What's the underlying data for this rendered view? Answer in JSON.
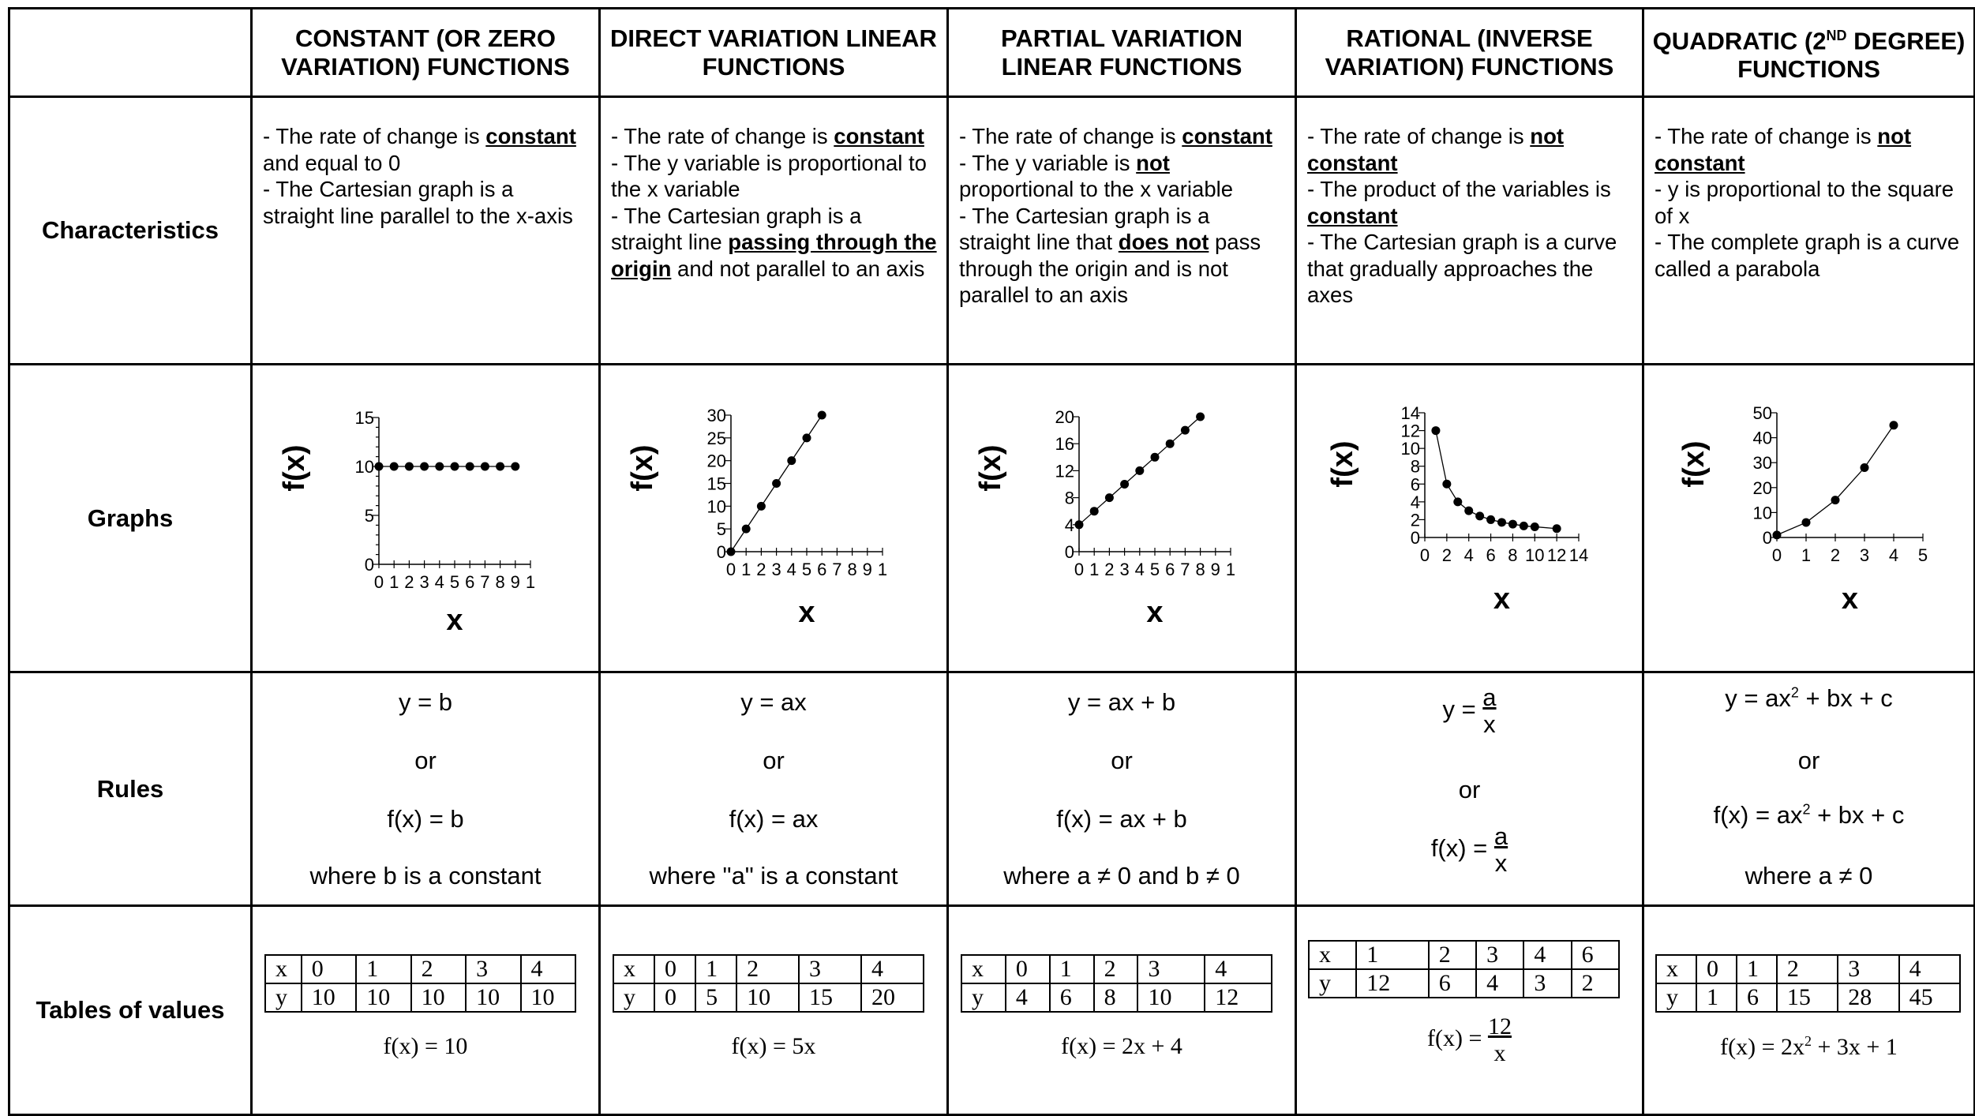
{
  "headers": [
    "",
    "CONSTANT (OR ZERO VARIATION) FUNCTIONS",
    "DIRECT VARIATION LINEAR FUNCTIONS",
    "PARTIAL VARIATION LINEAR FUNCTIONS",
    "RATIONAL (INVERSE VARIATION) FUNCTIONS",
    "QUADRATIC (2ND DEGREE) FUNCTIONS"
  ],
  "header_parts": {
    "quadratic_pre": "QUADRATIC (2",
    "quadratic_sup": "ND",
    "quadratic_post": "DEGREE) FUNCTIONS"
  },
  "row_labels": [
    "Characteristics",
    "Graphs",
    "Rules",
    "Tables of values"
  ],
  "characteristics": {
    "constant": [
      [
        "- The rate of change is ",
        ""
      ],
      [
        "constant",
        "bold"
      ],
      [
        " and equal to 0",
        ""
      ],
      [
        "- The Cartesian graph is a straight line parallel to the x-axis",
        ""
      ]
    ],
    "c0": "- The rate of change is",
    "c1": "constant",
    "c2": "and equal to 0",
    "c3": "- The Cartesian graph is a straight line parallel to the x-axis",
    "d0": "- The rate of change is",
    "d1": "constant",
    "d2": "- The y variable is proportional to the x variable",
    "d3": "- The Cartesian graph is a straight line",
    "d4": "passing through the origin",
    "d5": "and not parallel to an axis",
    "p0": "- The rate of change is",
    "p1": "constant",
    "p2": "- The y variable is",
    "p3": "not",
    "p4": "proportional to the x variable",
    "p5": "- The Cartesian graph is a straight line that",
    "p6": "does not",
    "p7": "pass through the origin and is not parallel to an axis",
    "r0": "- The rate of change is",
    "r1": "not constant",
    "r2": "- The product of the variables is",
    "r3": "constant",
    "r4": "- The Cartesian graph is a curve that gradually approaches the axes",
    "q0": "- The rate of change is",
    "q1": "not constant",
    "q2": "- y is proportional to the square of x",
    "q3": "- The complete graph is a curve called a parabola"
  },
  "graphs": {
    "ylabel": "f(x)",
    "xlabel": "x"
  },
  "chart_data": [
    {
      "type": "line",
      "name": "constant",
      "x": [
        0,
        1,
        2,
        3,
        4,
        5,
        6,
        7,
        8,
        9
      ],
      "y": [
        10,
        10,
        10,
        10,
        10,
        10,
        10,
        10,
        10,
        10
      ],
      "xlim": [
        0,
        10
      ],
      "ylim": [
        0,
        15
      ],
      "xticks": [
        "0",
        "1",
        "2",
        "3",
        "4",
        "5",
        "6",
        "7",
        "8",
        "9",
        "1"
      ],
      "yticks": [
        "0",
        "5",
        "10",
        "15"
      ],
      "xlabel": "x",
      "ylabel": "f(x)"
    },
    {
      "type": "line",
      "name": "direct",
      "x": [
        0,
        1,
        2,
        3,
        4,
        5,
        6
      ],
      "y": [
        0,
        5,
        10,
        15,
        20,
        25,
        30
      ],
      "xlim": [
        0,
        10
      ],
      "ylim": [
        0,
        30
      ],
      "xticks": [
        "0",
        "1",
        "2",
        "3",
        "4",
        "5",
        "6",
        "7",
        "8",
        "9",
        "1"
      ],
      "yticks": [
        "0",
        "5",
        "10",
        "15",
        "20",
        "25",
        "30"
      ],
      "xlabel": "x",
      "ylabel": "f(x)"
    },
    {
      "type": "line",
      "name": "partial",
      "x": [
        0,
        1,
        2,
        3,
        4,
        5,
        6,
        7,
        8
      ],
      "y": [
        4,
        6,
        8,
        10,
        12,
        14,
        16,
        18,
        20
      ],
      "xlim": [
        0,
        10
      ],
      "ylim": [
        0,
        20
      ],
      "xticks": [
        "0",
        "1",
        "2",
        "3",
        "4",
        "5",
        "6",
        "7",
        "8",
        "9",
        "1"
      ],
      "yticks": [
        "0",
        "4",
        "8",
        "12",
        "16",
        "20"
      ],
      "xlabel": "x",
      "ylabel": "f(x)"
    },
    {
      "type": "line",
      "name": "rational",
      "x": [
        1,
        2,
        3,
        4,
        5,
        6,
        7,
        8,
        9,
        10,
        12
      ],
      "y": [
        12,
        6,
        4,
        3,
        2.4,
        2,
        1.7,
        1.5,
        1.3,
        1.2,
        1
      ],
      "xlim": [
        0,
        14
      ],
      "ylim": [
        0,
        14
      ],
      "xticks": [
        "0",
        "2",
        "4",
        "6",
        "8",
        "10",
        "12",
        "14"
      ],
      "yticks": [
        "0",
        "2",
        "4",
        "6",
        "8",
        "10",
        "12",
        "14"
      ],
      "xlabel": "x",
      "ylabel": "f(x)"
    },
    {
      "type": "line",
      "name": "quadratic",
      "x": [
        0,
        1,
        2,
        3,
        4
      ],
      "y": [
        1,
        6,
        15,
        28,
        45
      ],
      "xlim": [
        0,
        5
      ],
      "ylim": [
        0,
        50
      ],
      "xticks": [
        "0",
        "1",
        "2",
        "3",
        "4",
        "5"
      ],
      "yticks": [
        "0",
        "10",
        "20",
        "30",
        "40",
        "50"
      ],
      "xlabel": "x",
      "ylabel": "f(x)"
    }
  ],
  "rules": {
    "or": "or",
    "constant": {
      "a": "y = b",
      "b": "f(x) = b",
      "note": "where b is a constant"
    },
    "direct": {
      "a": "y = ax",
      "b": "f(x) = ax",
      "note": "where \"a\" is a constant"
    },
    "partial": {
      "a": "y = ax + b",
      "b": "f(x) = ax + b",
      "note": "where a ≠ 0 and b ≠ 0"
    },
    "rational": {
      "a_pre": "y =",
      "b_pre": "f(x) =",
      "num": "a",
      "den": "x"
    },
    "quadratic": {
      "a_pre": "y = ax",
      "sup": "2",
      "a_post": " + bx + c",
      "b_pre": "f(x) = ax",
      "b_post": " + bx + c",
      "note": "where a ≠ 0"
    }
  },
  "tables": {
    "constant": {
      "x": [
        "x",
        "0",
        "1",
        "2",
        "3",
        "4"
      ],
      "y": [
        "y",
        "10",
        "10",
        "10",
        "10",
        "10"
      ],
      "eq": "f(x) = 10"
    },
    "direct": {
      "x": [
        "x",
        "0",
        "1",
        "2",
        "3",
        "4"
      ],
      "y": [
        "y",
        "0",
        "5",
        "10",
        "15",
        "20"
      ],
      "eq": "f(x) = 5x"
    },
    "partial": {
      "x": [
        "x",
        "0",
        "1",
        "2",
        "3",
        "4"
      ],
      "y": [
        "y",
        "4",
        "6",
        "8",
        "10",
        "12"
      ],
      "eq": "f(x) = 2x + 4"
    },
    "rational": {
      "x": [
        "x",
        "1",
        "2",
        "3",
        "4",
        "6"
      ],
      "y": [
        "y",
        "12",
        "6",
        "4",
        "3",
        "2"
      ],
      "eq_pre": "f(x) =",
      "eq_num": "12",
      "eq_den": "x"
    },
    "quadratic": {
      "x": [
        "x",
        "0",
        "1",
        "2",
        "3",
        "4"
      ],
      "y": [
        "y",
        "1",
        "6",
        "15",
        "28",
        "45"
      ],
      "eq_pre": "f(x) = 2x",
      "eq_sup": "2",
      "eq_post": " + 3x + 1"
    }
  }
}
